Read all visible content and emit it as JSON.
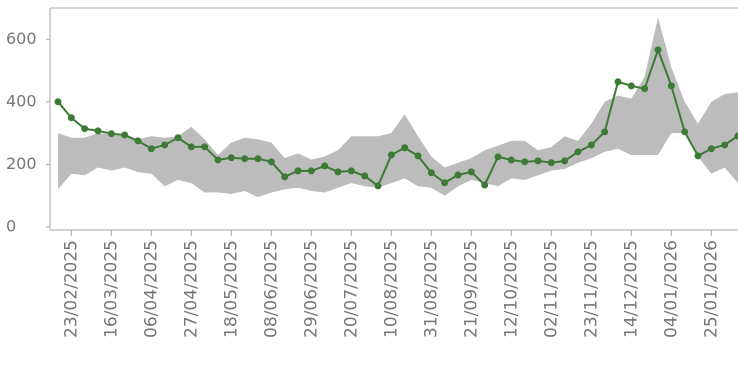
{
  "chart_data": {
    "type": "line-band",
    "categories": [
      null,
      "23/02/2025",
      null,
      null,
      "16/03/2025",
      null,
      null,
      "06/04/2025",
      null,
      null,
      "27/04/2025",
      null,
      null,
      "18/05/2025",
      null,
      null,
      "08/06/2025",
      null,
      null,
      "29/06/2025",
      null,
      null,
      "20/07/2025",
      null,
      null,
      "10/08/2025",
      null,
      null,
      "31/08/2025",
      null,
      null,
      "21/09/2025",
      null,
      null,
      "12/10/2025",
      null,
      null,
      "02/11/2025",
      null,
      null,
      "23/11/2025",
      null,
      null,
      "14/12/2025",
      null,
      null,
      "04/01/2026",
      null,
      null,
      "25/01/2026",
      null,
      null
    ],
    "series": [
      {
        "color": "#3d7a35",
        "values": [
          400,
          349,
          314,
          307,
          298,
          294,
          275,
          250,
          262,
          285,
          256,
          256,
          214,
          221,
          218,
          218,
          208,
          160,
          179,
          179,
          195,
          176,
          179,
          163,
          131,
          230,
          253,
          227,
          173,
          141,
          166,
          176,
          134,
          224,
          214,
          208,
          211,
          205,
          211,
          240,
          262,
          304,
          464,
          451,
          442,
          566,
          451,
          304,
          227,
          250,
          262,
          291
        ]
      },
      {
        "color": "#bcbcbc",
        "low": [
          120,
          170,
          165,
          190,
          180,
          190,
          175,
          170,
          130,
          150,
          140,
          110,
          110,
          105,
          115,
          95,
          110,
          120,
          125,
          115,
          110,
          125,
          140,
          130,
          125,
          140,
          155,
          130,
          125,
          100,
          130,
          150,
          140,
          130,
          155,
          150,
          165,
          180,
          185,
          205,
          220,
          240,
          250,
          230,
          230,
          230,
          300,
          300,
          225,
          170,
          190,
          140
        ],
        "high": [
          300,
          285,
          285,
          300,
          295,
          290,
          280,
          290,
          285,
          290,
          320,
          280,
          230,
          270,
          285,
          280,
          270,
          220,
          235,
          215,
          225,
          245,
          290,
          290,
          290,
          300,
          360,
          290,
          225,
          190,
          205,
          220,
          245,
          260,
          275,
          275,
          245,
          255,
          290,
          275,
          330,
          400,
          420,
          410,
          480,
          670,
          510,
          400,
          330,
          400,
          425,
          430
        ]
      }
    ],
    "ylim": [
      -10,
      700
    ],
    "yticks": [
      0,
      200,
      400,
      600
    ]
  }
}
